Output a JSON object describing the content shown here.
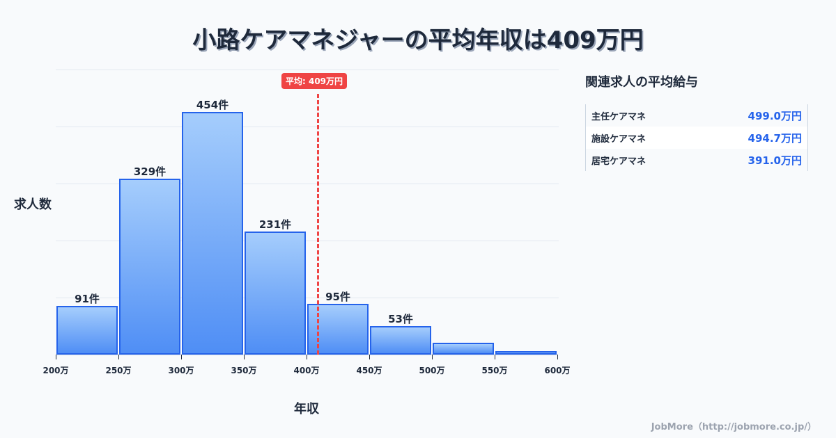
{
  "title": "小路ケアマネジャーの平均年収は409万円",
  "chart_data": {
    "type": "bar",
    "title": "小路ケアマネジャーの平均年収は409万円",
    "xlabel": "年収",
    "ylabel": "求人数",
    "categories": [
      "200-250万",
      "250-300万",
      "300-350万",
      "350-400万",
      "400-450万",
      "450-500万",
      "500-550万",
      "550-600万"
    ],
    "values": [
      91,
      329,
      454,
      231,
      95,
      53,
      22,
      6
    ],
    "bar_labels": [
      "91件",
      "329件",
      "454件",
      "231件",
      "95件",
      "53件",
      "",
      ""
    ],
    "x_ticks": [
      "200万",
      "250万",
      "300万",
      "350万",
      "400万",
      "450万",
      "500万",
      "550万",
      "600万"
    ],
    "xlim": [
      200,
      600
    ],
    "ylim": [
      0,
      534
    ],
    "grid": true,
    "annotations": [
      {
        "type": "vline",
        "x": 409,
        "label": "平均: 409万円",
        "color": "#ef4444",
        "style": "dashed"
      }
    ],
    "bar_color": "#2563eb"
  },
  "axis": {
    "y_title": "求人数",
    "x_title": "年収",
    "ticks": [
      "200万",
      "250万",
      "300万",
      "350万",
      "400万",
      "450万",
      "500万",
      "550万",
      "600万"
    ]
  },
  "bars": [
    {
      "label": "91件",
      "value": 91
    },
    {
      "label": "329件",
      "value": 329
    },
    {
      "label": "454件",
      "value": 454
    },
    {
      "label": "231件",
      "value": 231
    },
    {
      "label": "95件",
      "value": 95
    },
    {
      "label": "53件",
      "value": 53
    },
    {
      "label": "",
      "value": 22
    },
    {
      "label": "",
      "value": 6
    }
  ],
  "average": {
    "label": "平均: 409万円",
    "value": 409
  },
  "side_panel": {
    "title": "関連求人の平均給与",
    "rows": [
      {
        "name": "主任ケアマネ",
        "value": "499.0万円"
      },
      {
        "name": "施設ケアマネ",
        "value": "494.7万円"
      },
      {
        "name": "居宅ケアマネ",
        "value": "391.0万円"
      }
    ]
  },
  "footer": "JobMore（http://jobmore.co.jp/）",
  "colors": {
    "accent": "#2563eb",
    "average_line": "#ef4444",
    "text": "#1e293b",
    "background": "#f8fafc"
  }
}
